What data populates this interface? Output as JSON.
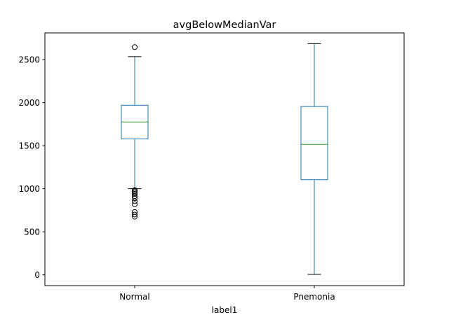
{
  "chart_data": {
    "type": "box",
    "title": "avgBelowMedianVar",
    "xlabel": "label1",
    "ylabel": "",
    "categories": [
      "Normal",
      "Pnemonia"
    ],
    "ylim": [
      -125,
      2810
    ],
    "yticks": [
      0,
      500,
      1000,
      1500,
      2000,
      2500
    ],
    "grid": false,
    "boxes": [
      {
        "category": "Normal",
        "whisker_low": 1000,
        "q1": 1580,
        "median": 1775,
        "q3": 1970,
        "whisker_high": 2535,
        "outliers": [
          2645,
          985,
          970,
          955,
          940,
          915,
          890,
          855,
          820,
          730,
          700,
          675
        ]
      },
      {
        "category": "Pnemonia",
        "whisker_low": 5,
        "q1": 1105,
        "median": 1515,
        "q3": 1955,
        "whisker_high": 2685,
        "outliers": []
      }
    ],
    "colors": {
      "box": "#1f77b4",
      "median": "#2ca02c",
      "outlier": "#000000",
      "axes": "#000000"
    }
  }
}
